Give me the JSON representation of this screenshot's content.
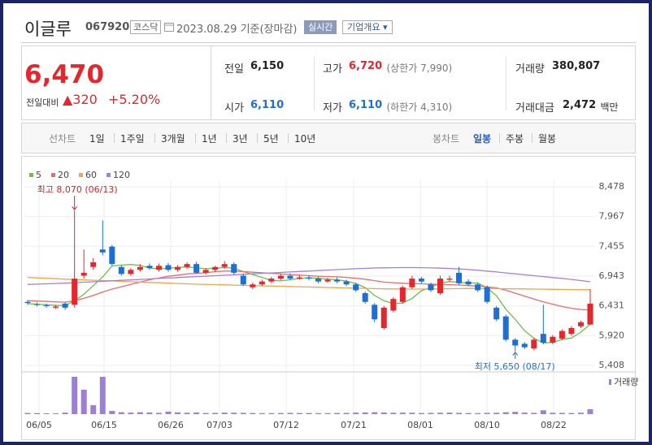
{
  "header": {
    "name": "이글루",
    "code": "067920",
    "market": "코스닥",
    "date": "2023.08.29 기준(장마감)",
    "realtime": "실시간",
    "company": "기업개요 ▾"
  },
  "quote": {
    "price": "6,470",
    "change_caption": "전일대비",
    "change": "▲320",
    "change_pct": "+5.20%",
    "cells": [
      {
        "label": "전일",
        "value": "6,150"
      },
      {
        "label": "고가",
        "value": "6,720",
        "note": "(상한가 7,990)"
      },
      {
        "label": "거래량",
        "value": "380,807"
      },
      {
        "label": "시가",
        "value": "6,110"
      },
      {
        "label": "저가",
        "value": "6,110",
        "note": "(하한가 4,310)"
      },
      {
        "label": "거래대금",
        "value": "2,472",
        "note": "백만"
      }
    ]
  },
  "tabs": {
    "line_caption": "선차트",
    "line_tabs": [
      "1일",
      "1주일",
      "3개월",
      "1년",
      "3년",
      "5년",
      "10년"
    ],
    "candle_caption": "봉차트",
    "candle_tabs": [
      "일봉",
      "주봉",
      "월봉"
    ]
  },
  "chart_data": {
    "type": "candlestick",
    "ylim": [
      5408,
      8478
    ],
    "yticks": [
      {
        "value": 8478,
        "label": "8,478"
      },
      {
        "value": 7967,
        "label": "7,967"
      },
      {
        "value": 7455,
        "label": "7,455"
      },
      {
        "value": 6943,
        "label": "6,943"
      },
      {
        "value": 6431,
        "label": "6,431"
      },
      {
        "value": 5920,
        "label": "5,920"
      },
      {
        "value": 5408,
        "label": "5,408"
      }
    ],
    "xticks": [
      "06/05",
      "06/15",
      "06/26",
      "07/03",
      "07/12",
      "07/21",
      "08/01",
      "08/10",
      "08/22"
    ],
    "high_label": "최고 8,070 (06/13)",
    "low_label": "최저 5,650 (08/17)",
    "volume_label": "거래량",
    "up_color": "#e5262c",
    "down_color": "#1d6fd6",
    "volume_color": "#9d80d3",
    "open": [
      6500,
      6460,
      6440,
      6400,
      6470,
      6450,
      6950,
      7100,
      7400,
      7450,
      7100,
      6980,
      7050,
      7120,
      7050,
      7130,
      7050,
      7100,
      7150,
      7000,
      7050,
      7100,
      7150,
      6950,
      6750,
      6800,
      6850,
      6900,
      6950,
      6900,
      6920,
      6900,
      6850,
      6880,
      6850,
      6800,
      6650,
      6450,
      6050,
      6350,
      6500,
      6750,
      6900,
      6800,
      6650,
      6880,
      7000,
      6850,
      6800,
      6750,
      6400,
      6250,
      5850,
      5780,
      5700,
      5950,
      5800,
      5870,
      5950,
      6080,
      6110
    ],
    "high": [
      6530,
      6490,
      6470,
      6450,
      6500,
      8070,
      7400,
      7250,
      7900,
      7480,
      7130,
      7080,
      7150,
      7160,
      7160,
      7170,
      7130,
      7180,
      7190,
      7080,
      7120,
      7200,
      7180,
      6980,
      6830,
      6880,
      6930,
      6980,
      6990,
      6950,
      6960,
      6930,
      6910,
      6920,
      6880,
      6830,
      6680,
      6480,
      6430,
      6580,
      6780,
      6950,
      6930,
      6830,
      6950,
      6950,
      7100,
      6890,
      6830,
      6780,
      6430,
      6280,
      5880,
      5810,
      5880,
      6450,
      5930,
      6030,
      6080,
      6180,
      6720
    ],
    "low": [
      6450,
      6420,
      6400,
      6380,
      6360,
      6400,
      6900,
      7050,
      7300,
      7120,
      6950,
      6950,
      7020,
      7050,
      7020,
      7020,
      7020,
      7070,
      6980,
      6970,
      7020,
      7070,
      6970,
      6770,
      6720,
      6770,
      6820,
      6870,
      6870,
      6880,
      6870,
      6820,
      6830,
      6820,
      6770,
      6670,
      6470,
      6150,
      6020,
      6320,
      6470,
      6720,
      6820,
      6670,
      6620,
      6850,
      6790,
      6770,
      6670,
      6470,
      6170,
      5820,
      5650,
      5690,
      5670,
      5770,
      5770,
      5840,
      5920,
      6050,
      6110
    ],
    "close": [
      6480,
      6450,
      6430,
      6420,
      6400,
      6900,
      7000,
      7180,
      7350,
      7150,
      6980,
      7050,
      7100,
      7080,
      7120,
      7050,
      7100,
      7150,
      7000,
      7050,
      7100,
      7150,
      7000,
      6800,
      6800,
      6850,
      6900,
      6950,
      6900,
      6920,
      6900,
      6850,
      6880,
      6850,
      6800,
      6700,
      6500,
      6200,
      6400,
      6550,
      6750,
      6900,
      6850,
      6700,
      6900,
      6900,
      6820,
      6800,
      6700,
      6500,
      6200,
      5850,
      5750,
      5720,
      5850,
      5800,
      5900,
      6000,
      6050,
      6150,
      6470
    ],
    "volume": [
      90000,
      80000,
      70000,
      60000,
      120000,
      2900000,
      1900000,
      700000,
      2900000,
      250000,
      150000,
      120000,
      150000,
      130000,
      100000,
      200000,
      140000,
      110000,
      130000,
      90000,
      100000,
      120000,
      110000,
      100000,
      90000,
      80000,
      80000,
      90000,
      100000,
      90000,
      90000,
      80000,
      80000,
      90000,
      100000,
      120000,
      130000,
      150000,
      130000,
      110000,
      120000,
      110000,
      90000,
      100000,
      110000,
      120000,
      100000,
      90000,
      80000,
      100000,
      110000,
      150000,
      180000,
      120000,
      100000,
      300000,
      110000,
      100000,
      90000,
      110000,
      380807
    ],
    "series": [
      {
        "name": "5",
        "color": "#6dbf4b",
        "values": [
          6470,
          6460,
          6450,
          6440,
          6436,
          6520,
          6630,
          6780,
          6930,
          7116,
          7132,
          7142,
          7126,
          7082,
          7066,
          7080,
          7090,
          7100,
          7084,
          7070,
          7080,
          7090,
          7080,
          7020,
          6970,
          6920,
          6870,
          6860,
          6880,
          6904,
          6914,
          6904,
          6890,
          6880,
          6856,
          6816,
          6746,
          6610,
          6520,
          6470,
          6480,
          6560,
          6690,
          6750,
          6820,
          6850,
          6834,
          6824,
          6824,
          6744,
          6604,
          6374,
          6200,
          6004,
          5874,
          5794,
          5804,
          5854,
          5880,
          5980,
          6114
        ]
      },
      {
        "name": "20",
        "color": "#f06a6a",
        "values": [
          6520,
          6515,
          6508,
          6500,
          6495,
          6520,
          6560,
          6610,
          6670,
          6720,
          6760,
          6800,
          6840,
          6880,
          6910,
          6940,
          6960,
          6980,
          6990,
          7000,
          7020,
          7030,
          7030,
          7020,
          7010,
          7000,
          6990,
          6980,
          6970,
          6960,
          6950,
          6940,
          6935,
          6930,
          6920,
          6905,
          6890,
          6865,
          6840,
          6830,
          6820,
          6815,
          6810,
          6805,
          6800,
          6795,
          6790,
          6780,
          6770,
          6760,
          6740,
          6700,
          6650,
          6600,
          6550,
          6500,
          6460,
          6420,
          6390,
          6370,
          6360
        ]
      },
      {
        "name": "60",
        "color": "#f3a349",
        "values": [
          6920,
          6912,
          6905,
          6898,
          6890,
          6884,
          6878,
          6872,
          6866,
          6860,
          6852,
          6846,
          6840,
          6834,
          6828,
          6822,
          6816,
          6810,
          6804,
          6800,
          6796,
          6792,
          6788,
          6784,
          6780,
          6776,
          6772,
          6768,
          6764,
          6760,
          6756,
          6752,
          6748,
          6744,
          6740,
          6736,
          6732,
          6728,
          6724,
          6722,
          6720,
          6720,
          6720,
          6722,
          6724,
          6726,
          6728,
          6730,
          6730,
          6730,
          6728,
          6726,
          6724,
          6722,
          6720,
          6718,
          6716,
          6714,
          6712,
          6710,
          6708
        ]
      },
      {
        "name": "120",
        "color": "#a57de0",
        "values": [
          6800,
          6805,
          6810,
          6816,
          6822,
          6830,
          6838,
          6846,
          6854,
          6862,
          6870,
          6878,
          6886,
          6894,
          6902,
          6910,
          6918,
          6926,
          6934,
          6942,
          6950,
          6958,
          6966,
          6974,
          6982,
          6990,
          6998,
          7006,
          7014,
          7022,
          7030,
          7038,
          7046,
          7054,
          7062,
          7070,
          7076,
          7082,
          7086,
          7088,
          7090,
          7090,
          7088,
          7084,
          7080,
          7074,
          7066,
          7056,
          7044,
          7030,
          7014,
          6998,
          6982,
          6966,
          6950,
          6934,
          6918,
          6902,
          6886,
          6866,
          6846
        ]
      }
    ]
  }
}
